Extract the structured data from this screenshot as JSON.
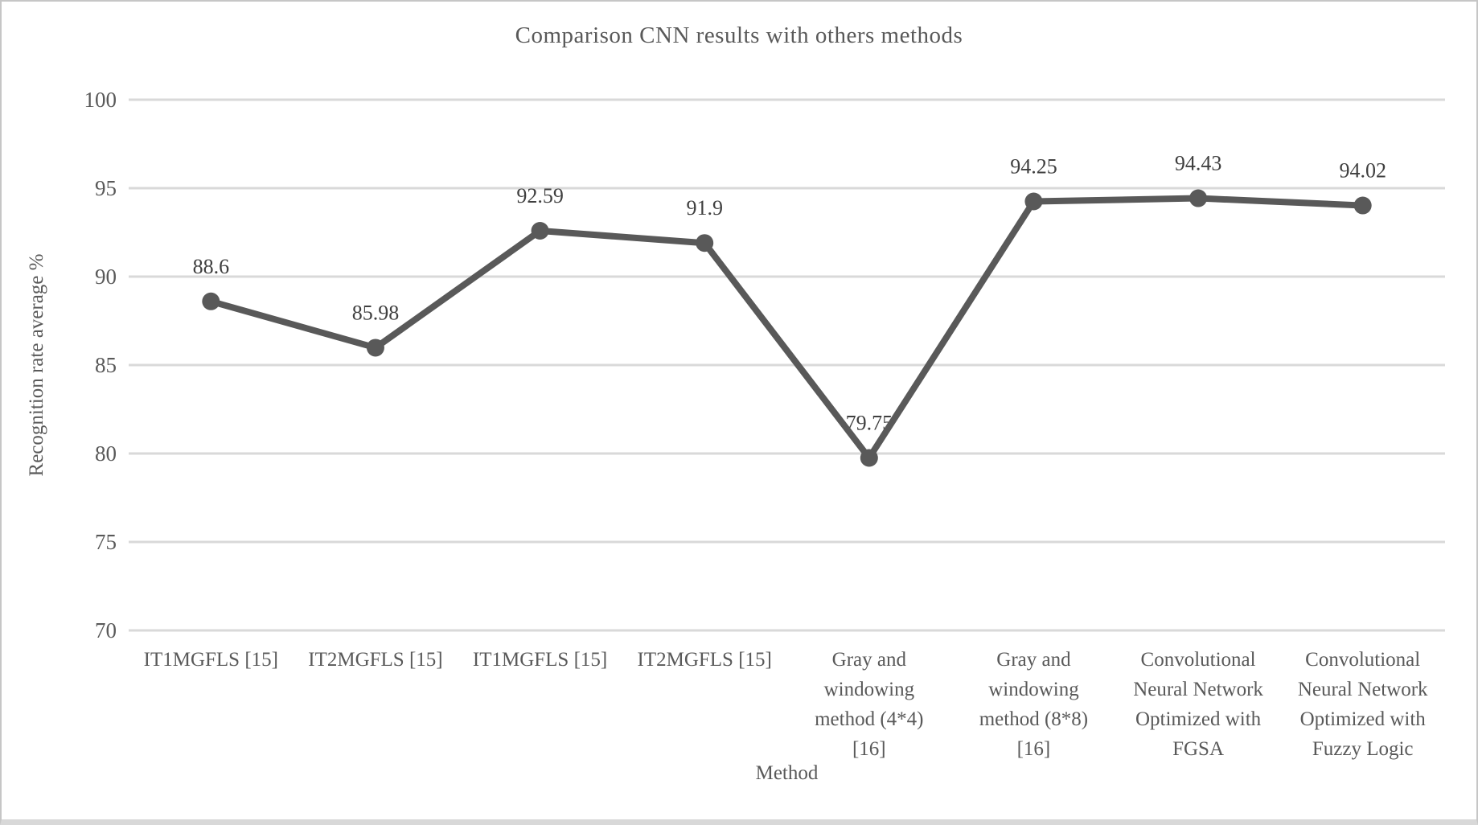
{
  "chart_data": {
    "type": "line",
    "title": "Comparison CNN results with others methods",
    "xlabel": "Method",
    "ylabel": "Recognition rate average %",
    "categories": [
      "IT1MGFLS [15]",
      "IT2MGFLS [15]",
      "IT1MGFLS [15]",
      "IT2MGFLS [15]",
      "Gray and\nwindowing\nmethod (4*4)\n[16]",
      "Gray and\nwindowing\nmethod (8*8)\n[16]",
      "Convolutional\nNeural Network\nOptimized with\nFGSA",
      "Convolutional\nNeural Network\nOptimized with\nFuzzy Logic"
    ],
    "values": [
      88.6,
      85.98,
      92.59,
      91.9,
      79.75,
      94.25,
      94.43,
      94.02
    ],
    "data_labels": [
      "88.6",
      "85.98",
      "92.59",
      "91.9",
      "79.75",
      "94.25",
      "94.43",
      "94.02"
    ],
    "ylim": [
      70,
      100
    ],
    "yticks": [
      100,
      95,
      90,
      85,
      80,
      75,
      70
    ],
    "ytick_step": 5,
    "grid": "horizontal-only",
    "legend": "none",
    "series_name": "Recognition rate average %",
    "colors": {
      "line": "#595959",
      "marker": "#595959",
      "gridline": "#d9d9d9",
      "axis_text": "#595959",
      "data_label": "#3f3f3f",
      "title": "#595959",
      "background": "#ffffff",
      "frame_border": "#c6c6c6"
    }
  }
}
